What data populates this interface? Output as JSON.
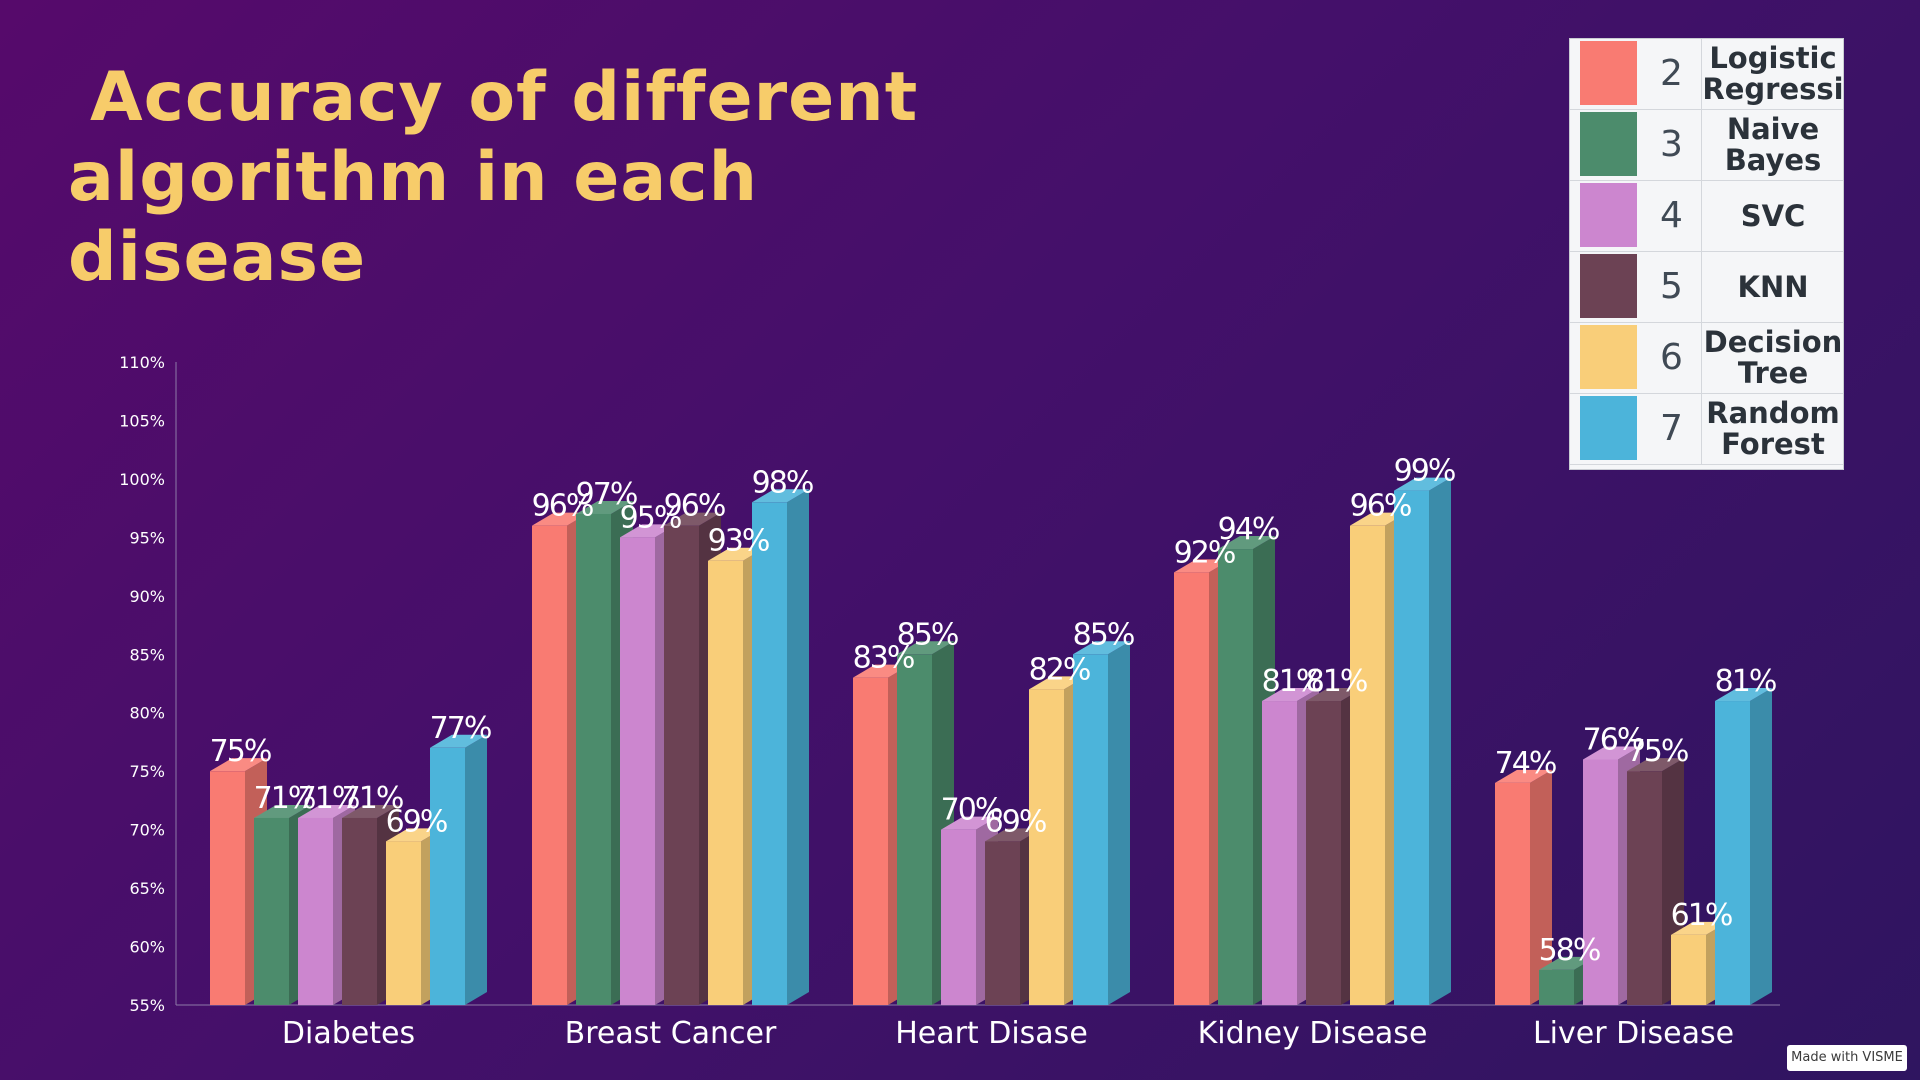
{
  "title": {
    "line1": "Accuracy of different",
    "line2": "algorithm in each disease"
  },
  "credit": "Made with VISME",
  "legend": [
    {
      "num": "2",
      "name": "Logistic Regressi",
      "color": "#f97b72"
    },
    {
      "num": "3",
      "name": "Naive Bayes",
      "color": "#4c8c6c"
    },
    {
      "num": "4",
      "name": "SVC",
      "color": "#cc86cf"
    },
    {
      "num": "5",
      "name": "KNN",
      "color": "#6c4254"
    },
    {
      "num": "6",
      "name": "Decision Tree",
      "color": "#f9ce79"
    },
    {
      "num": "7",
      "name": "Random Forest",
      "color": "#4cb4da"
    }
  ],
  "chart_data": {
    "type": "bar",
    "title": "Accuracy of different algorithm in each disease",
    "xlabel": "",
    "ylabel": "",
    "ylim": [
      55,
      110
    ],
    "yticks": [
      "55%",
      "60%",
      "65%",
      "70%",
      "75%",
      "80%",
      "85%",
      "90%",
      "95%",
      "100%",
      "105%",
      "110%"
    ],
    "grid": false,
    "legend_position": "top-right",
    "categories": [
      "Diabetes",
      "Breast Cancer",
      "Heart Disase",
      "Kidney Disease",
      "Liver Disease"
    ],
    "series": [
      {
        "name": "Logistic Regressi",
        "color": "#f97b72",
        "values": [
          75,
          96,
          83,
          92,
          74
        ],
        "labels": [
          "75%",
          "96%",
          "83%",
          "92%",
          "74%"
        ]
      },
      {
        "name": "Naive Bayes",
        "color": "#4c8c6c",
        "values": [
          71,
          97,
          85,
          94,
          58
        ],
        "labels": [
          "71%",
          "97%",
          "85%",
          "94%",
          "58%"
        ]
      },
      {
        "name": "SVC",
        "color": "#cc86cf",
        "values": [
          71,
          95,
          70,
          81,
          76
        ],
        "labels": [
          "71%",
          "95%",
          "70%",
          "81%",
          "76%"
        ]
      },
      {
        "name": "KNN",
        "color": "#6c4254",
        "values": [
          71,
          96,
          69,
          81,
          75
        ],
        "labels": [
          "71%",
          "96%",
          "69%",
          "81%",
          "75%"
        ]
      },
      {
        "name": "Decision Tree",
        "color": "#f9ce79",
        "values": [
          69,
          93,
          82,
          96,
          61
        ],
        "labels": [
          "69%",
          "93%",
          "82%",
          "96%",
          "61%"
        ]
      },
      {
        "name": "Random Forest",
        "color": "#4cb4da",
        "values": [
          77,
          98,
          85,
          99,
          81
        ],
        "labels": [
          "77%",
          "98%",
          "85%",
          "99%",
          "81%"
        ]
      }
    ]
  }
}
